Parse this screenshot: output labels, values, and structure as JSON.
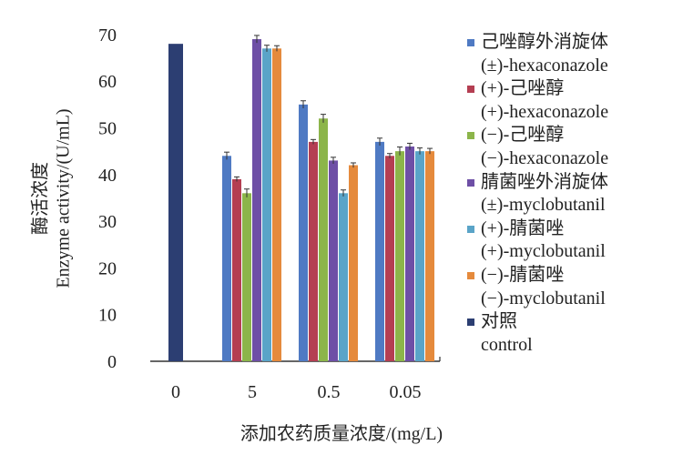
{
  "chart_data": {
    "type": "bar",
    "xlabel": "添加农药质量浓度/(mg/L)",
    "ylabel_cn": "酶活浓度",
    "ylabel": "Enzyme activity/(U/mL)",
    "categories": [
      "0",
      "5",
      "0.5",
      "0.05"
    ],
    "ylim": [
      0,
      77
    ],
    "yticks": [
      "0",
      "10",
      "20",
      "30",
      "40",
      "50",
      "60",
      "70"
    ],
    "grid": false,
    "legend_position": "right",
    "series": [
      {
        "name": "己唑醇外消旋体",
        "name_en": "(±)-hexaconazole",
        "color": "#4f7ac3",
        "values": [
          null,
          44,
          55,
          47
        ],
        "errors": [
          null,
          0.8,
          0.8,
          0.8
        ]
      },
      {
        "name": "(+)-己唑醇",
        "name_en": "(+)-hexaconazole",
        "color": "#b43e52",
        "values": [
          null,
          39,
          47,
          44
        ],
        "errors": [
          null,
          0.5,
          0.5,
          0.5
        ]
      },
      {
        "name": "(−)-己唑醇",
        "name_en": "(−)-hexaconazole",
        "color": "#8cb54a",
        "values": [
          null,
          36,
          52,
          45
        ],
        "errors": [
          null,
          0.9,
          0.9,
          0.9
        ]
      },
      {
        "name": "腈菌唑外消旋体",
        "name_en": "(±)-myclobutanil",
        "color": "#6e4fa6",
        "values": [
          null,
          69,
          43,
          46
        ],
        "errors": [
          null,
          0.8,
          0.7,
          0.7
        ]
      },
      {
        "name": "(+)-腈菌唑",
        "name_en": "(+)-myclobutanil",
        "color": "#5aa4c8",
        "values": [
          null,
          67,
          36,
          45
        ],
        "errors": [
          null,
          0.7,
          0.7,
          0.7
        ]
      },
      {
        "name": "(−)-腈菌唑",
        "name_en": "(−)-myclobutanil",
        "color": "#e58a3c",
        "values": [
          null,
          67,
          42,
          45
        ],
        "errors": [
          null,
          0.6,
          0.5,
          0.6
        ]
      },
      {
        "name": "对照",
        "name_en": "control",
        "color": "#2c3e72",
        "values": [
          68,
          null,
          null,
          null
        ],
        "errors": [
          null,
          null,
          null,
          null
        ]
      }
    ]
  }
}
